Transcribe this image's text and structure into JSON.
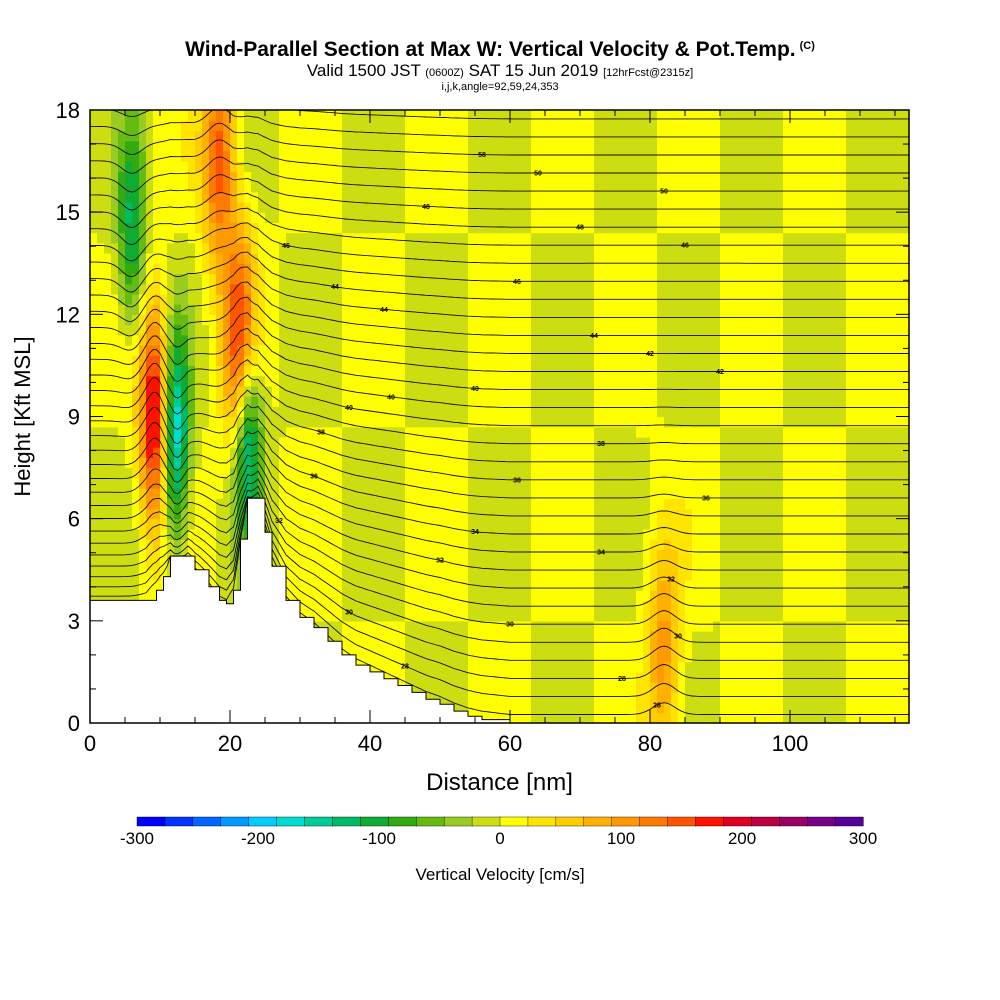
{
  "header": {
    "title": "Wind-Parallel Section at Max W: Vertical Velocity & Pot.Temp.",
    "title_tag": "(C)",
    "sub_valid": "Valid 1500 JST",
    "sub_z": "(0600Z)",
    "sub_date": "SAT 15 Jun 2019",
    "sub_fcst": "[12hrFcst@2315z]",
    "params": "i,j,k,angle=92,59,24,353"
  },
  "chart_data": {
    "type": "heatmap",
    "title": "Wind-Parallel Section at Max W: Vertical Velocity & Pot.Temp.",
    "xlabel": "Distance [nm]",
    "ylabel": "Height [Kft MSL]",
    "xlim": [
      0,
      117
    ],
    "ylim": [
      0,
      18
    ],
    "x_ticks": [
      0,
      20,
      40,
      60,
      80,
      100
    ],
    "y_ticks": [
      0,
      3,
      6,
      9,
      12,
      15,
      18
    ],
    "colorbar": {
      "label": "Vertical Velocity [cm/s]",
      "range": [
        -300,
        300
      ],
      "ticks": [
        -300,
        -200,
        -100,
        0,
        100,
        200,
        300
      ],
      "colors": [
        "#0000ff",
        "#0033ff",
        "#0066ff",
        "#0099ff",
        "#00ccff",
        "#00ddd0",
        "#00cc99",
        "#00bb66",
        "#11aa33",
        "#33aa11",
        "#66bb11",
        "#99cc22",
        "#ccdd11",
        "#ffff00",
        "#ffe400",
        "#ffcc00",
        "#ffb000",
        "#ff9900",
        "#ff7a00",
        "#ff5500",
        "#ff1100",
        "#dd0022",
        "#bb0044",
        "#990066",
        "#770088",
        "#550099"
      ]
    },
    "terrain": [
      [
        0,
        3.6
      ],
      [
        4,
        3.6
      ],
      [
        8,
        3.6
      ],
      [
        9.5,
        3.9
      ],
      [
        10.5,
        4.3
      ],
      [
        11.5,
        4.9
      ],
      [
        14,
        4.9
      ],
      [
        15,
        4.5
      ],
      [
        17,
        4.0
      ],
      [
        18.5,
        3.6
      ],
      [
        19.5,
        3.5
      ],
      [
        20.5,
        3.9
      ],
      [
        21.5,
        5.4
      ],
      [
        22.5,
        6.6
      ],
      [
        24,
        6.6
      ],
      [
        25,
        5.6
      ],
      [
        26,
        4.6
      ],
      [
        28,
        3.6
      ],
      [
        30,
        3.1
      ],
      [
        32,
        2.8
      ],
      [
        34,
        2.4
      ],
      [
        36,
        2.0
      ],
      [
        38,
        1.7
      ],
      [
        40,
        1.5
      ],
      [
        42,
        1.3
      ],
      [
        44,
        1.1
      ],
      [
        46,
        0.9
      ],
      [
        48,
        0.7
      ],
      [
        50,
        0.55
      ],
      [
        52,
        0.35
      ],
      [
        54,
        0.2
      ],
      [
        56,
        0.1
      ],
      [
        60,
        0
      ]
    ],
    "updrafts": [
      {
        "x": 9.5,
        "z": 9.0,
        "w": 230
      },
      {
        "x": 21.5,
        "z": 11.0,
        "w": 190
      },
      {
        "x": 18.5,
        "z": 16.5,
        "w": 150
      },
      {
        "x": 82,
        "z": 2.0,
        "w": 105
      }
    ],
    "downdrafts": [
      {
        "x": 12,
        "z": 8.5,
        "w": -230
      },
      {
        "x": 22.5,
        "z": 8.5,
        "w": -190
      },
      {
        "x": 6,
        "z": 14.5,
        "w": -120
      }
    ],
    "contour_labels": [
      "58",
      "50",
      "50",
      "48",
      "48",
      "46",
      "46",
      "46",
      "44",
      "44",
      "44",
      "42",
      "42",
      "40",
      "40",
      "40",
      "38",
      "38",
      "38",
      "36",
      "36",
      "34",
      "34",
      "32",
      "32",
      "32",
      "30",
      "30",
      "30",
      "28",
      "28",
      "28"
    ]
  }
}
